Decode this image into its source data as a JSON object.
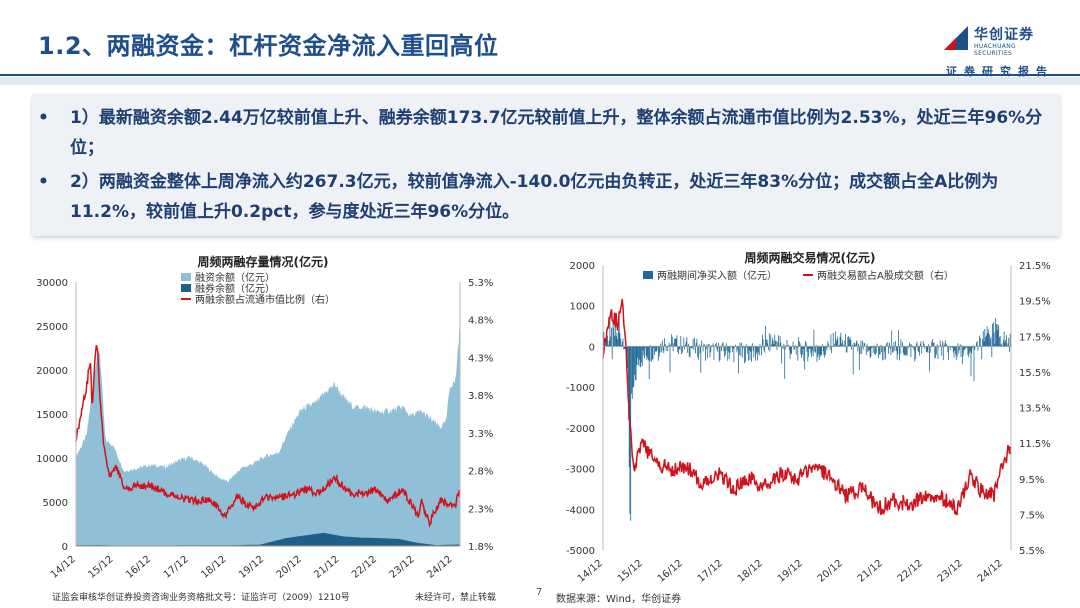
{
  "header": {
    "title": "1.2、两融资金：杠杆资金净流入重回高位",
    "logo_cn": "华创证券",
    "logo_en": "HUACHUANG SECURITIES",
    "subtitle": "证券研究报告"
  },
  "bullets": [
    {
      "marker": "•",
      "text": "1）最新融资余额2.44万亿较前值上升、融券余额173.7亿元较前值上升，整体余额占流通市值比例为2.53%，处近三年96%分位；"
    },
    {
      "marker": "•",
      "text": "2）两融资金整体上周净流入约267.3亿元，较前值净流入-140.0亿元由负转正，处近三年83%分位；成交额占全A比例为11.2%，较前值上升0.2pct，参与度处近三年96%分位。"
    }
  ],
  "colors": {
    "primary": "#1f4e8c",
    "fin_area": "#8fc0d8",
    "short_area": "#1f5f8b",
    "red": "#d0121b",
    "bar": "#1f6a96"
  },
  "chart_data": [
    {
      "type": "area",
      "title": "周频两融存量情况(亿元)",
      "legend": [
        "融资余额（亿元）",
        "融券余额（亿元）",
        "两融余额占流通市值比例（右）"
      ],
      "legend_position": "top",
      "categories": [
        "14/12",
        "15/12",
        "16/12",
        "17/12",
        "18/12",
        "19/12",
        "20/12",
        "21/12",
        "22/12",
        "23/12",
        "24/12"
      ],
      "y_left": {
        "ticks": [
          "0",
          "5000",
          "10000",
          "15000",
          "20000",
          "25000",
          "30000"
        ],
        "ylim": [
          0,
          30000
        ]
      },
      "y_right": {
        "ticks": [
          "1.8%",
          "2.3%",
          "2.8%",
          "3.3%",
          "3.8%",
          "4.3%",
          "4.8%",
          "5.3%"
        ],
        "ylim": [
          1.8,
          5.3
        ]
      },
      "series": [
        {
          "name": "融资余额（亿元）",
          "x": [
            2014.9,
            2015.2,
            2015.45,
            2015.55,
            2015.7,
            2015.9,
            2016.2,
            2016.6,
            2016.9,
            2017.3,
            2017.7,
            2017.95,
            2018.3,
            2018.7,
            2018.95,
            2019.3,
            2019.6,
            2019.95,
            2020.3,
            2020.6,
            2020.9,
            2021.3,
            2021.6,
            2021.8,
            2022.0,
            2022.3,
            2022.6,
            2022.95,
            2023.3,
            2023.6,
            2023.8,
            2024.1,
            2024.6,
            2024.75,
            2024.85,
            2025.0,
            2025.1
          ],
          "values": [
            10000,
            12500,
            21000,
            22300,
            12000,
            11500,
            8500,
            8900,
            9200,
            9000,
            9800,
            10100,
            9300,
            7800,
            7300,
            8800,
            9300,
            10200,
            10600,
            13300,
            15500,
            16300,
            17700,
            18400,
            17000,
            15800,
            15800,
            15200,
            15400,
            15800,
            14800,
            15300,
            13500,
            14100,
            18200,
            18700,
            24400
          ]
        },
        {
          "name": "融券余额（亿元）",
          "x": [
            2014.9,
            2015.5,
            2016.0,
            2018.0,
            2019.0,
            2019.8,
            2020.5,
            2021.0,
            2021.5,
            2022.0,
            2022.5,
            2023.0,
            2023.5,
            2024.0,
            2024.5,
            2025.1
          ],
          "values": [
            80,
            100,
            40,
            70,
            90,
            150,
            900,
            1200,
            1500,
            1100,
            950,
            900,
            800,
            350,
            100,
            173.7
          ]
        },
        {
          "name": "两融余额占流通市值比例（右）",
          "x": [
            2014.9,
            2015.0,
            2015.1,
            2015.2,
            2015.3,
            2015.35,
            2015.45,
            2015.5,
            2015.55,
            2015.65,
            2015.8,
            2016.0,
            2016.2,
            2016.5,
            2016.9,
            2017.3,
            2017.7,
            2018.0,
            2018.5,
            2018.9,
            2019.2,
            2019.6,
            2020.0,
            2020.4,
            2020.8,
            2021.0,
            2021.4,
            2021.8,
            2022.2,
            2022.6,
            2022.9,
            2023.2,
            2023.6,
            2024.0,
            2024.1,
            2024.3,
            2024.6,
            2024.8,
            2025.0,
            2025.1
          ],
          "values": [
            3.2,
            3.4,
            3.7,
            3.9,
            4.3,
            3.6,
            4.5,
            4.4,
            3.8,
            3.2,
            2.7,
            2.85,
            2.55,
            2.6,
            2.6,
            2.5,
            2.45,
            2.4,
            2.4,
            2.2,
            2.45,
            2.3,
            2.45,
            2.45,
            2.5,
            2.55,
            2.5,
            2.7,
            2.5,
            2.5,
            2.55,
            2.4,
            2.55,
            2.2,
            2.4,
            2.1,
            2.4,
            2.35,
            2.35,
            2.53
          ]
        }
      ]
    },
    {
      "type": "bar",
      "title": "周频两融交易情况(亿元)",
      "legend": [
        "两融期间净买入额（亿元）",
        "两融交易额占A股成交额（右）"
      ],
      "legend_position": "top",
      "categories": [
        "14/12",
        "15/12",
        "16/12",
        "17/12",
        "18/12",
        "19/12",
        "20/12",
        "21/12",
        "22/12",
        "23/12",
        "24/12"
      ],
      "y_left": {
        "ticks": [
          "-5000",
          "-4000",
          "-3000",
          "-2000",
          "-1000",
          "0",
          "1000",
          "2000"
        ],
        "ylim": [
          -5000,
          2000
        ]
      },
      "y_right": {
        "ticks": [
          "5.5%",
          "7.5%",
          "9.5%",
          "11.5%",
          "13.5%",
          "15.5%",
          "17.5%",
          "19.5%",
          "21.5%"
        ],
        "ylim": [
          5.5,
          21.5
        ]
      },
      "series": [
        {
          "name": "两融期间净买入额（亿元）",
          "x": [
            2014.95,
            2015.05,
            2015.15,
            2015.25,
            2015.35,
            2015.45,
            2015.55,
            2015.6,
            2015.7,
            2015.8,
            2016.1,
            2016.5,
            2017.5,
            2018.8,
            2019.2,
            2019.6,
            2020.5,
            2020.7,
            2021.4,
            2021.9,
            2022.4,
            2023.3,
            2024.1,
            2024.75,
            2024.8,
            2024.9,
            2025.0,
            2025.1
          ],
          "values": [
            400,
            600,
            900,
            800,
            700,
            500,
            -1500,
            -4500,
            -2800,
            -1000,
            -400,
            300,
            -300,
            -500,
            500,
            -300,
            -400,
            500,
            -300,
            -400,
            -200,
            -200,
            -600,
            1400,
            900,
            600,
            400,
            267.3
          ]
        },
        {
          "name": "两融交易额占A股成交额（右）",
          "x": [
            2014.9,
            2015.0,
            2015.1,
            2015.2,
            2015.3,
            2015.4,
            2015.5,
            2015.55,
            2015.6,
            2015.7,
            2015.9,
            2016.2,
            2016.6,
            2017.0,
            2017.4,
            2017.8,
            2018.2,
            2018.6,
            2019.0,
            2019.4,
            2019.8,
            2020.2,
            2020.6,
            2021.0,
            2021.4,
            2021.8,
            2022.2,
            2022.6,
            2023.0,
            2023.4,
            2023.8,
            2024.1,
            2024.4,
            2024.7,
            2024.85,
            2025.0,
            2025.1
          ],
          "values": [
            16.5,
            17.5,
            19.0,
            18.5,
            18.2,
            19.5,
            17.0,
            14.0,
            12.5,
            10.0,
            11.5,
            10.5,
            10.0,
            10.2,
            9.2,
            9.8,
            8.9,
            9.5,
            9.0,
            9.8,
            9.5,
            10.3,
            9.6,
            8.5,
            9.0,
            7.8,
            8.3,
            8.0,
            8.6,
            8.4,
            7.8,
            9.8,
            8.7,
            8.6,
            10.0,
            10.8,
            11.2
          ]
        }
      ]
    }
  ],
  "footer": {
    "left": "证监会审核华创证券投资咨询业务资格批文号：证监许可（2009）1210号",
    "right": "未经许可，禁止转载",
    "page": "7",
    "source": "数据来源：Wind，华创证券"
  }
}
